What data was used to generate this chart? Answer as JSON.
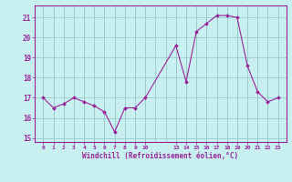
{
  "x": [
    0,
    1,
    2,
    3,
    4,
    5,
    6,
    7,
    8,
    9,
    10,
    13,
    14,
    15,
    16,
    17,
    18,
    19,
    20,
    21,
    22,
    23
  ],
  "y": [
    17.0,
    16.5,
    16.7,
    17.0,
    16.8,
    16.6,
    16.3,
    15.3,
    16.5,
    16.5,
    17.0,
    19.6,
    17.8,
    20.3,
    20.7,
    21.1,
    21.1,
    21.0,
    18.6,
    17.3,
    16.8,
    17.0
  ],
  "line_color": "#992299",
  "marker_color": "#992299",
  "bg_color": "#C8F0F0",
  "grid_color": "#99CCCC",
  "xlabel": "Windchill (Refroidissement éolien,°C)",
  "ylim": [
    14.8,
    21.6
  ],
  "xlim": [
    -0.8,
    23.8
  ],
  "yticks": [
    15,
    16,
    17,
    18,
    19,
    20,
    21
  ],
  "xticks": [
    0,
    1,
    2,
    3,
    4,
    5,
    6,
    7,
    8,
    9,
    10,
    13,
    14,
    15,
    16,
    17,
    18,
    19,
    20,
    21,
    22,
    23
  ],
  "tick_color": "#992299",
  "label_color": "#992299",
  "figsize": [
    3.2,
    2.0
  ],
  "dpi": 100
}
